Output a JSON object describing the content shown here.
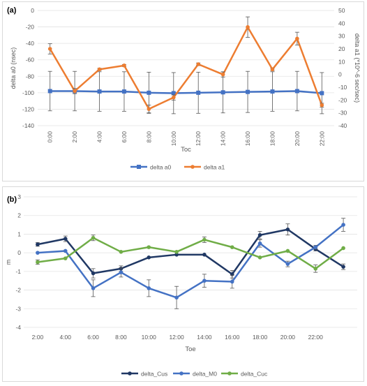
{
  "chart_data": [
    {
      "type": "line",
      "panel_label": "(a)",
      "xlabel": "Toc",
      "ylabel_left": "delta a0 (nsec)",
      "ylabel_right": "delta a1 (*10^-6 sec/sec)",
      "categories": [
        "0:00",
        "2:00",
        "4:00",
        "6:00",
        "8:00",
        "10:00",
        "12:00",
        "14:00",
        "16:00",
        "18:00",
        "20:00",
        "22:00"
      ],
      "ylim_left": [
        -140,
        0
      ],
      "yticks_left": [
        0,
        -20,
        -40,
        -60,
        -80,
        -100,
        -120,
        -140
      ],
      "ylim_right": [
        -40,
        50
      ],
      "yticks_right": [
        50,
        40,
        30,
        20,
        10,
        0,
        -10,
        -20,
        -30,
        -40
      ],
      "grid": true,
      "legend_position": "bottom",
      "series": [
        {
          "name": "delta a0",
          "axis": "left",
          "color": "#4472c4",
          "marker": "square",
          "values": [
            -98,
            -98,
            -98.5,
            -98.5,
            -100,
            -100.5,
            -100,
            -99.5,
            -99,
            -98.5,
            -98,
            -100.5
          ],
          "error": [
            24,
            24,
            24,
            24,
            25,
            25,
            25,
            25,
            25,
            24,
            24,
            25
          ]
        },
        {
          "name": "delta a1",
          "axis": "right",
          "color": "#ed7d31",
          "marker": "circle",
          "values": [
            20,
            -13,
            4,
            7,
            -27,
            -18,
            8,
            0,
            37,
            4,
            28,
            -24
          ],
          "error": [
            4,
            2,
            0.8,
            0.8,
            3,
            2,
            1,
            2,
            8,
            1,
            5,
            1.5
          ]
        }
      ]
    },
    {
      "type": "line",
      "panel_label": "(b)",
      "xlabel": "Toe",
      "ylabel": "m",
      "categories": [
        "2:00",
        "4:00",
        "6:00",
        "8:00",
        "10:00",
        "12:00",
        "14:00",
        "16:00",
        "18:00",
        "20:00",
        "22:00",
        ""
      ],
      "ylim": [
        -4,
        3
      ],
      "yticks": [
        3,
        2,
        1,
        0,
        -1,
        -2,
        -3,
        -4
      ],
      "grid": true,
      "legend_position": "bottom",
      "series": [
        {
          "name": "delta_Cus",
          "color": "#203864",
          "marker": "circle",
          "values": [
            0.45,
            0.75,
            -1.1,
            -0.85,
            -0.25,
            -0.1,
            -0.1,
            -1.15,
            0.95,
            1.25,
            0.2,
            -0.75
          ],
          "error": [
            0.1,
            0.15,
            0.25,
            0.15,
            0,
            0,
            0,
            0.2,
            0.2,
            0.3,
            0.1,
            0.15
          ]
        },
        {
          "name": "delta_M0",
          "color": "#4472c4",
          "marker": "circle",
          "values": [
            0,
            0.1,
            -1.9,
            -1.05,
            -1.9,
            -2.4,
            -1.5,
            -1.55,
            0.5,
            -0.6,
            0.3,
            1.5
          ],
          "error": [
            0,
            0,
            0.45,
            0.25,
            0.45,
            0.6,
            0.35,
            0.35,
            0.2,
            0.15,
            0.1,
            0.35
          ]
        },
        {
          "name": "delta_Cuc",
          "color": "#70ad47",
          "marker": "circle",
          "values": [
            -0.5,
            -0.3,
            0.8,
            0.05,
            0.3,
            0.05,
            0.7,
            0.3,
            -0.25,
            0.1,
            -0.85,
            0.25
          ],
          "error": [
            0.12,
            0,
            0.15,
            0,
            0,
            0,
            0.15,
            0,
            0,
            0,
            0.2,
            0
          ]
        }
      ]
    }
  ]
}
